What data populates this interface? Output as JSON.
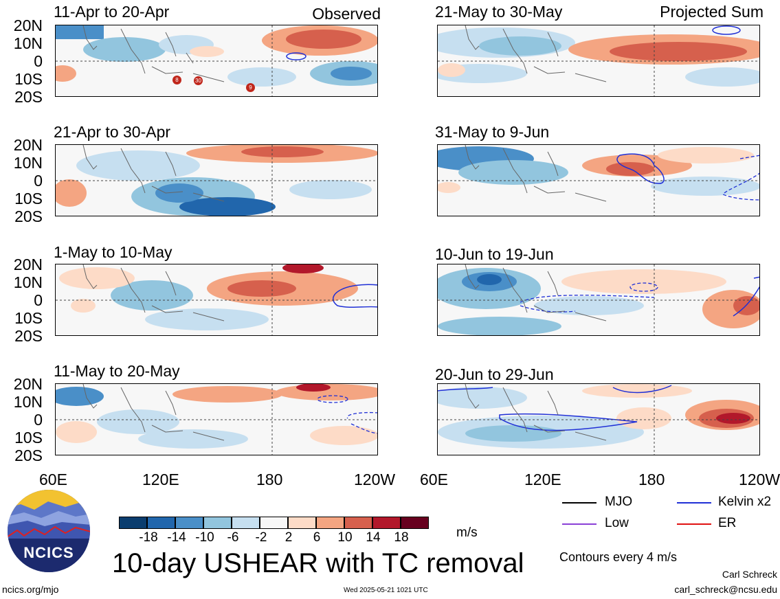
{
  "panels": [
    {
      "period": "11-Apr to 20-Apr",
      "label": "Observed"
    },
    {
      "period": "21-Apr to 30-Apr",
      "label": ""
    },
    {
      "period": "1-May to 10-May",
      "label": ""
    },
    {
      "period": "11-May to 20-May",
      "label": ""
    },
    {
      "period": "21-May to 30-May",
      "label": "Projected Sum"
    },
    {
      "period": "31-May to 9-Jun",
      "label": ""
    },
    {
      "period": "10-Jun to 19-Jun",
      "label": ""
    },
    {
      "period": "20-Jun to 29-Jun",
      "label": ""
    }
  ],
  "lat_labels": [
    "20N",
    "10N",
    "0",
    "10S",
    "20S"
  ],
  "lon_labels": [
    "60E",
    "120E",
    "180",
    "120W"
  ],
  "tc_markers": [
    "8",
    "30",
    "9"
  ],
  "colorbar": {
    "colors": [
      "#0b3d6e",
      "#2166ac",
      "#4a8fc8",
      "#92c5de",
      "#c6dff0",
      "#f7f7f7",
      "#fddbc7",
      "#f4a582",
      "#d6604d",
      "#b2182b",
      "#67001f"
    ],
    "ticks": [
      "-18",
      "-14",
      "-10",
      "-6",
      "-2",
      "2",
      "6",
      "10",
      "14",
      "18"
    ],
    "units": "m/s"
  },
  "legend": [
    {
      "label": "MJO",
      "color": "#000000"
    },
    {
      "label": "Kelvin x2",
      "color": "#1f2fd6"
    },
    {
      "label": "Low",
      "color": "#8a3fd6"
    },
    {
      "label": "ER",
      "color": "#e01010"
    }
  ],
  "contour_note": "Contours every 4 m/s",
  "title": "10-day USHEAR with TC removal",
  "logo_text": "NCICS",
  "url": "ncics.org/mjo",
  "timestamp": "Wed 2025-05-21 1021 UTC",
  "author": "Carl Schreck",
  "email": "carl_schreck@ncsu.edu"
}
